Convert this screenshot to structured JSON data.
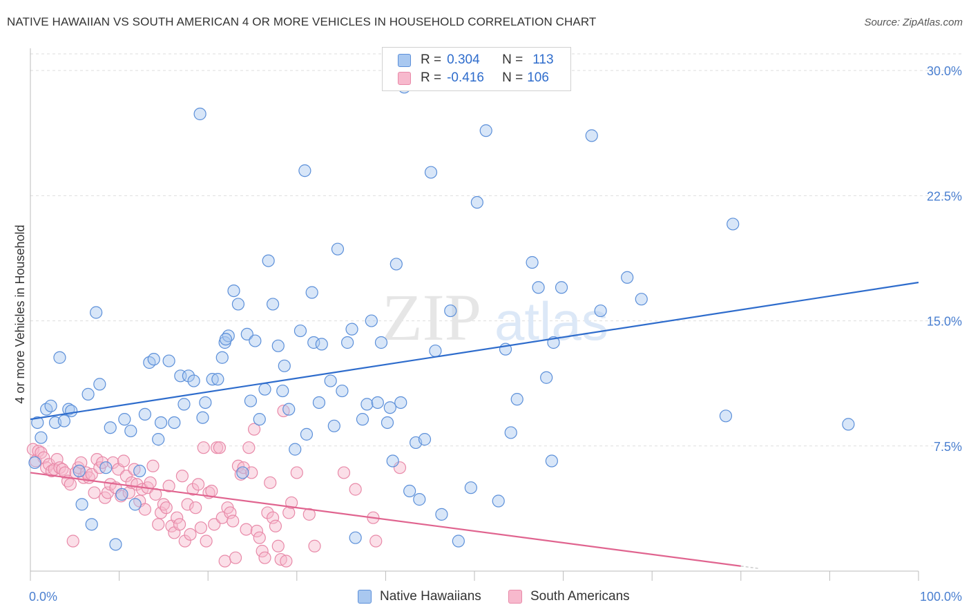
{
  "header": {
    "title": "NATIVE HAWAIIAN VS SOUTH AMERICAN 4 OR MORE VEHICLES IN HOUSEHOLD CORRELATION CHART",
    "source": "Source: ZipAtlas.com"
  },
  "legend": {
    "native": {
      "r_label": "R = ",
      "r_value": "0.304",
      "n_label": "N = ",
      "n_value": "113"
    },
    "south": {
      "r_label": "R = ",
      "r_value": "-0.416",
      "n_label": "N = ",
      "n_value": "106"
    }
  },
  "bottom_legend": {
    "native": "Native Hawaiians",
    "south": "South Americans"
  },
  "watermark": {
    "zip": "ZIP",
    "atlas": "atlas"
  },
  "colors": {
    "native_fill": "#a9c8f0",
    "native_stroke": "#5b8fd9",
    "native_line": "#2e6ccc",
    "south_fill": "#f7b9cd",
    "south_stroke": "#e889a8",
    "south_line": "#e0648f",
    "grid": "#dddddd",
    "tick_text": "#4a7fd0"
  },
  "chart_data": {
    "type": "scatter",
    "title": "NATIVE HAWAIIAN VS SOUTH AMERICAN 4 OR MORE VEHICLES IN HOUSEHOLD CORRELATION CHART",
    "xlabel": "",
    "ylabel": "4 or more Vehicles in Household",
    "xlim": [
      0,
      100
    ],
    "ylim": [
      0,
      31
    ],
    "x_tick_labels": [
      "0.0%",
      "100.0%"
    ],
    "y_ticks": [
      7.5,
      15.0,
      22.5,
      30.0
    ],
    "y_tick_labels": [
      "7.5%",
      "15.0%",
      "22.5%",
      "30.0%"
    ],
    "grid": true,
    "legend_position": "top-center",
    "series": [
      {
        "name": "Native Hawaiians",
        "r": 0.304,
        "n": 113,
        "trend": {
          "x": [
            0,
            100
          ],
          "y": [
            9.1,
            17.3
          ]
        },
        "points": [
          [
            0.5,
            6.5
          ],
          [
            0.8,
            8.9
          ],
          [
            1.2,
            8.0
          ],
          [
            1.8,
            9.7
          ],
          [
            2.3,
            9.9
          ],
          [
            2.8,
            8.9
          ],
          [
            3.3,
            12.8
          ],
          [
            3.8,
            9.0
          ],
          [
            4.3,
            9.7
          ],
          [
            4.6,
            9.6
          ],
          [
            5.5,
            6.0
          ],
          [
            5.8,
            4.0
          ],
          [
            6.5,
            10.6
          ],
          [
            6.9,
            2.8
          ],
          [
            7.4,
            15.5
          ],
          [
            7.8,
            11.2
          ],
          [
            8.5,
            6.2
          ],
          [
            9.0,
            8.6
          ],
          [
            9.6,
            1.6
          ],
          [
            10.3,
            4.6
          ],
          [
            10.6,
            9.1
          ],
          [
            11.3,
            8.4
          ],
          [
            11.8,
            4.0
          ],
          [
            12.3,
            6.0
          ],
          [
            12.9,
            9.4
          ],
          [
            13.4,
            12.5
          ],
          [
            13.9,
            12.7
          ],
          [
            14.4,
            7.9
          ],
          [
            14.7,
            8.9
          ],
          [
            15.6,
            12.6
          ],
          [
            16.2,
            8.9
          ],
          [
            16.9,
            11.7
          ],
          [
            17.3,
            10.0
          ],
          [
            17.8,
            11.7
          ],
          [
            18.4,
            11.4
          ],
          [
            19.1,
            27.4
          ],
          [
            19.4,
            9.2
          ],
          [
            19.7,
            10.1
          ],
          [
            20.5,
            11.5
          ],
          [
            21.1,
            11.5
          ],
          [
            21.6,
            12.8
          ],
          [
            21.9,
            13.7
          ],
          [
            22.3,
            14.1
          ],
          [
            22.9,
            16.8
          ],
          [
            23.4,
            16.0
          ],
          [
            23.9,
            5.9
          ],
          [
            24.4,
            14.2
          ],
          [
            24.8,
            10.2
          ],
          [
            25.3,
            13.8
          ],
          [
            25.8,
            9.1
          ],
          [
            26.4,
            10.9
          ],
          [
            26.8,
            18.6
          ],
          [
            27.3,
            16.0
          ],
          [
            27.9,
            13.5
          ],
          [
            28.4,
            10.8
          ],
          [
            28.6,
            12.3
          ],
          [
            29.1,
            9.7
          ],
          [
            29.8,
            7.3
          ],
          [
            30.4,
            14.4
          ],
          [
            30.9,
            24.0
          ],
          [
            31.1,
            8.2
          ],
          [
            31.7,
            16.7
          ],
          [
            31.9,
            13.7
          ],
          [
            32.5,
            10.1
          ],
          [
            32.8,
            13.6
          ],
          [
            33.8,
            11.4
          ],
          [
            34.2,
            8.7
          ],
          [
            34.6,
            19.3
          ],
          [
            35.1,
            10.8
          ],
          [
            35.7,
            13.7
          ],
          [
            36.2,
            14.5
          ],
          [
            36.6,
            2.0
          ],
          [
            37.4,
            9.1
          ],
          [
            37.9,
            10.0
          ],
          [
            38.4,
            15.0
          ],
          [
            39.1,
            10.1
          ],
          [
            40.2,
            8.9
          ],
          [
            40.8,
            6.6
          ],
          [
            41.2,
            18.4
          ],
          [
            41.7,
            10.1
          ],
          [
            42.1,
            29.0
          ],
          [
            42.7,
            4.8
          ],
          [
            43.4,
            7.7
          ],
          [
            43.8,
            4.3
          ],
          [
            44.4,
            7.9
          ],
          [
            45.1,
            23.9
          ],
          [
            45.6,
            13.2
          ],
          [
            46.3,
            3.4
          ],
          [
            47.3,
            15.6
          ],
          [
            48.2,
            1.8
          ],
          [
            49.6,
            5.0
          ],
          [
            50.3,
            22.1
          ],
          [
            51.3,
            26.4
          ],
          [
            52.7,
            4.2
          ],
          [
            53.5,
            13.3
          ],
          [
            54.1,
            8.3
          ],
          [
            54.8,
            10.3
          ],
          [
            56.5,
            18.5
          ],
          [
            57.2,
            17.0
          ],
          [
            58.1,
            11.6
          ],
          [
            58.7,
            6.6
          ],
          [
            58.9,
            13.7
          ],
          [
            59.8,
            17.0
          ],
          [
            63.2,
            26.1
          ],
          [
            64.2,
            15.6
          ],
          [
            67.2,
            17.6
          ],
          [
            68.8,
            16.3
          ],
          [
            78.3,
            9.3
          ],
          [
            79.1,
            20.8
          ],
          [
            92.1,
            8.8
          ],
          [
            22.0,
            13.9
          ],
          [
            39.5,
            13.7
          ],
          [
            40.5,
            9.8
          ]
        ]
      },
      {
        "name": "South Americans",
        "r": -0.416,
        "n": 106,
        "trend": {
          "x": [
            0,
            80
          ],
          "y": [
            5.9,
            0.3
          ]
        },
        "points": [
          [
            0.3,
            7.3
          ],
          [
            0.6,
            6.6
          ],
          [
            0.9,
            7.2
          ],
          [
            1.2,
            7.1
          ],
          [
            1.5,
            6.8
          ],
          [
            1.8,
            6.2
          ],
          [
            2.1,
            6.4
          ],
          [
            2.4,
            6.0
          ],
          [
            2.7,
            6.1
          ],
          [
            3.0,
            6.7
          ],
          [
            3.3,
            6.2
          ],
          [
            3.6,
            6.1
          ],
          [
            3.9,
            5.9
          ],
          [
            4.2,
            5.4
          ],
          [
            4.5,
            5.2
          ],
          [
            4.8,
            1.8
          ],
          [
            5.1,
            5.9
          ],
          [
            5.4,
            6.2
          ],
          [
            5.7,
            6.5
          ],
          [
            6.0,
            5.6
          ],
          [
            6.3,
            5.9
          ],
          [
            6.6,
            5.6
          ],
          [
            6.9,
            5.8
          ],
          [
            7.2,
            4.7
          ],
          [
            7.5,
            6.7
          ],
          [
            7.8,
            6.2
          ],
          [
            8.1,
            6.5
          ],
          [
            8.4,
            4.4
          ],
          [
            8.7,
            4.7
          ],
          [
            9.0,
            5.2
          ],
          [
            9.3,
            6.5
          ],
          [
            9.6,
            5.0
          ],
          [
            9.9,
            6.1
          ],
          [
            10.2,
            4.5
          ],
          [
            10.5,
            6.6
          ],
          [
            10.8,
            5.7
          ],
          [
            11.1,
            4.7
          ],
          [
            11.4,
            5.3
          ],
          [
            11.7,
            6.1
          ],
          [
            12.0,
            5.2
          ],
          [
            12.3,
            4.2
          ],
          [
            12.6,
            4.9
          ],
          [
            12.9,
            3.7
          ],
          [
            13.2,
            5.0
          ],
          [
            13.5,
            5.3
          ],
          [
            13.8,
            6.3
          ],
          [
            14.1,
            4.6
          ],
          [
            14.4,
            2.8
          ],
          [
            14.7,
            3.5
          ],
          [
            15.0,
            4.0
          ],
          [
            15.3,
            3.8
          ],
          [
            15.6,
            5.1
          ],
          [
            15.9,
            2.7
          ],
          [
            16.2,
            2.3
          ],
          [
            16.5,
            3.2
          ],
          [
            16.8,
            2.8
          ],
          [
            17.1,
            5.7
          ],
          [
            17.4,
            1.8
          ],
          [
            17.7,
            4.0
          ],
          [
            18.0,
            2.2
          ],
          [
            18.3,
            4.9
          ],
          [
            18.6,
            3.8
          ],
          [
            18.9,
            5.2
          ],
          [
            19.2,
            2.6
          ],
          [
            19.5,
            7.4
          ],
          [
            19.8,
            1.8
          ],
          [
            20.1,
            4.7
          ],
          [
            20.4,
            4.8
          ],
          [
            20.7,
            2.8
          ],
          [
            21.0,
            7.4
          ],
          [
            21.3,
            7.4
          ],
          [
            21.6,
            3.2
          ],
          [
            21.9,
            0.6
          ],
          [
            22.2,
            3.8
          ],
          [
            22.5,
            3.5
          ],
          [
            22.8,
            3.0
          ],
          [
            23.1,
            0.8
          ],
          [
            23.4,
            6.3
          ],
          [
            23.7,
            5.8
          ],
          [
            24.0,
            6.2
          ],
          [
            24.3,
            2.5
          ],
          [
            24.6,
            7.4
          ],
          [
            24.9,
            5.9
          ],
          [
            25.2,
            8.5
          ],
          [
            25.5,
            2.4
          ],
          [
            25.8,
            2.0
          ],
          [
            26.1,
            1.2
          ],
          [
            26.4,
            0.8
          ],
          [
            26.7,
            3.5
          ],
          [
            27.0,
            5.3
          ],
          [
            27.3,
            3.2
          ],
          [
            27.6,
            2.7
          ],
          [
            27.9,
            1.5
          ],
          [
            28.2,
            0.7
          ],
          [
            28.5,
            9.6
          ],
          [
            28.8,
            0.6
          ],
          [
            29.1,
            3.5
          ],
          [
            29.4,
            4.1
          ],
          [
            30.0,
            5.9
          ],
          [
            31.4,
            3.4
          ],
          [
            32.0,
            1.5
          ],
          [
            35.3,
            5.9
          ],
          [
            36.6,
            4.9
          ],
          [
            38.6,
            3.2
          ],
          [
            38.9,
            1.8
          ],
          [
            41.6,
            6.2
          ]
        ]
      }
    ]
  }
}
